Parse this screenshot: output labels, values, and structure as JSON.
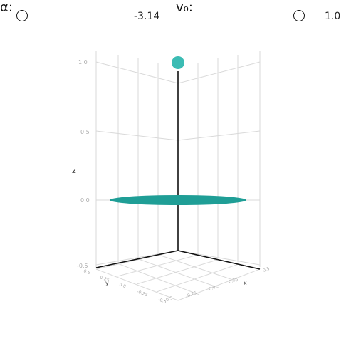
{
  "sliders": {
    "alpha": {
      "label": "α:",
      "value": "-3.14",
      "fraction": 0.0
    },
    "v0": {
      "label": "v₀:",
      "value": "1.0",
      "fraction": 1.0
    }
  },
  "plot": {
    "zlabel": "z",
    "xlabel": "x",
    "ylabel": "y",
    "z_ticks": [
      "1.0",
      "0.5",
      "0.0",
      "-0.5"
    ],
    "y_ticks": [
      "0.5",
      "0.25",
      "0.0",
      "-0.25",
      "-0.5"
    ],
    "x_ticks": [
      "0.5",
      "0.25",
      "0.0",
      "-0.25",
      "-0.5"
    ],
    "colors": {
      "disk": "#1f9e96",
      "ball": "#3cbcb4",
      "axis": "#111111",
      "grid": "#d9d9d9"
    }
  }
}
